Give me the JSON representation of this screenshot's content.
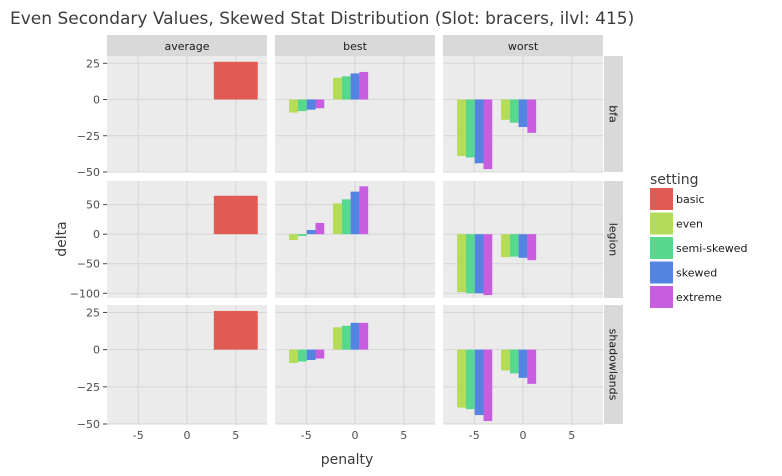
{
  "chart_data": {
    "type": "bar",
    "title": "Even Secondary Values, Skewed Stat Distribution (Slot: bracers, ilvl: 415)",
    "xlabel": "penalty",
    "ylabel": "delta",
    "x_ticks": [
      -5,
      0,
      5
    ],
    "x_tick_labels": [
      "-5",
      "0",
      "5"
    ],
    "xlim": [
      -8.2,
      8.2
    ],
    "facet_columns": [
      "average",
      "best",
      "worst"
    ],
    "facet_rows": [
      "bfa",
      "legion",
      "shadowlands"
    ],
    "rows": [
      {
        "name": "bfa",
        "ylim": [
          -50,
          30
        ],
        "y_ticks": [
          25,
          0,
          -25,
          -50
        ],
        "y_tick_labels": [
          "25",
          "0",
          "−25",
          "−50"
        ]
      },
      {
        "name": "legion",
        "ylim": [
          -108,
          90
        ],
        "y_ticks": [
          50,
          0,
          -50,
          -100
        ],
        "y_tick_labels": [
          "50",
          "0",
          "−50",
          "−100"
        ]
      },
      {
        "name": "shadowlands",
        "ylim": [
          -50,
          30
        ],
        "y_ticks": [
          25,
          0,
          -25,
          -50
        ],
        "y_tick_labels": [
          "25",
          "0",
          "−25",
          "−50"
        ]
      }
    ],
    "legend": {
      "title": "setting",
      "position": "right",
      "entries": [
        {
          "label": "basic",
          "color": "#e15b54"
        },
        {
          "label": "even",
          "color": "#b5dc58"
        },
        {
          "label": "semi-skewed",
          "color": "#56d98e"
        },
        {
          "label": "skewed",
          "color": "#5384e1"
        },
        {
          "label": "extreme",
          "color": "#c85de0"
        }
      ]
    },
    "bar_width": 0.9,
    "bars": [
      {
        "row": "bfa",
        "col": "average",
        "setting": "basic",
        "x": 5,
        "value": 26,
        "width": 4.5
      },
      {
        "row": "legion",
        "col": "average",
        "setting": "basic",
        "x": 5,
        "value": 65,
        "width": 4.5
      },
      {
        "row": "shadowlands",
        "col": "average",
        "setting": "basic",
        "x": 5,
        "value": 26,
        "width": 4.5
      },
      {
        "row": "bfa",
        "col": "best",
        "setting": "even",
        "x": -6.3,
        "value": -9
      },
      {
        "row": "bfa",
        "col": "best",
        "setting": "semi-skewed",
        "x": -5.4,
        "value": -8
      },
      {
        "row": "bfa",
        "col": "best",
        "setting": "skewed",
        "x": -4.5,
        "value": -7
      },
      {
        "row": "bfa",
        "col": "best",
        "setting": "extreme",
        "x": -3.6,
        "value": -6
      },
      {
        "row": "bfa",
        "col": "best",
        "setting": "even",
        "x": -1.8,
        "value": 15
      },
      {
        "row": "bfa",
        "col": "best",
        "setting": "semi-skewed",
        "x": -0.9,
        "value": 16
      },
      {
        "row": "bfa",
        "col": "best",
        "setting": "skewed",
        "x": 0,
        "value": 18
      },
      {
        "row": "bfa",
        "col": "best",
        "setting": "extreme",
        "x": 0.9,
        "value": 19
      },
      {
        "row": "legion",
        "col": "best",
        "setting": "even",
        "x": -6.3,
        "value": -10
      },
      {
        "row": "legion",
        "col": "best",
        "setting": "semi-skewed",
        "x": -5.4,
        "value": -3
      },
      {
        "row": "legion",
        "col": "best",
        "setting": "skewed",
        "x": -4.5,
        "value": 7
      },
      {
        "row": "legion",
        "col": "best",
        "setting": "extreme",
        "x": -3.6,
        "value": 19
      },
      {
        "row": "legion",
        "col": "best",
        "setting": "even",
        "x": -1.8,
        "value": 52
      },
      {
        "row": "legion",
        "col": "best",
        "setting": "semi-skewed",
        "x": -0.9,
        "value": 59
      },
      {
        "row": "legion",
        "col": "best",
        "setting": "skewed",
        "x": 0,
        "value": 72
      },
      {
        "row": "legion",
        "col": "best",
        "setting": "extreme",
        "x": 0.9,
        "value": 81
      },
      {
        "row": "shadowlands",
        "col": "best",
        "setting": "even",
        "x": -6.3,
        "value": -9
      },
      {
        "row": "shadowlands",
        "col": "best",
        "setting": "semi-skewed",
        "x": -5.4,
        "value": -8
      },
      {
        "row": "shadowlands",
        "col": "best",
        "setting": "skewed",
        "x": -4.5,
        "value": -7
      },
      {
        "row": "shadowlands",
        "col": "best",
        "setting": "extreme",
        "x": -3.6,
        "value": -6
      },
      {
        "row": "shadowlands",
        "col": "best",
        "setting": "even",
        "x": -1.8,
        "value": 15
      },
      {
        "row": "shadowlands",
        "col": "best",
        "setting": "semi-skewed",
        "x": -0.9,
        "value": 16
      },
      {
        "row": "shadowlands",
        "col": "best",
        "setting": "skewed",
        "x": 0,
        "value": 18
      },
      {
        "row": "shadowlands",
        "col": "best",
        "setting": "extreme",
        "x": 0.9,
        "value": 18
      },
      {
        "row": "bfa",
        "col": "worst",
        "setting": "even",
        "x": -6.3,
        "value": -39
      },
      {
        "row": "bfa",
        "col": "worst",
        "setting": "semi-skewed",
        "x": -5.4,
        "value": -40
      },
      {
        "row": "bfa",
        "col": "worst",
        "setting": "skewed",
        "x": -4.5,
        "value": -44
      },
      {
        "row": "bfa",
        "col": "worst",
        "setting": "extreme",
        "x": -3.6,
        "value": -48
      },
      {
        "row": "bfa",
        "col": "worst",
        "setting": "even",
        "x": -1.8,
        "value": -14
      },
      {
        "row": "bfa",
        "col": "worst",
        "setting": "semi-skewed",
        "x": -0.9,
        "value": -16
      },
      {
        "row": "bfa",
        "col": "worst",
        "setting": "skewed",
        "x": 0,
        "value": -19
      },
      {
        "row": "bfa",
        "col": "worst",
        "setting": "extreme",
        "x": 0.9,
        "value": -23
      },
      {
        "row": "legion",
        "col": "worst",
        "setting": "even",
        "x": -6.3,
        "value": -98
      },
      {
        "row": "legion",
        "col": "worst",
        "setting": "semi-skewed",
        "x": -5.4,
        "value": -100
      },
      {
        "row": "legion",
        "col": "worst",
        "setting": "skewed",
        "x": -4.5,
        "value": -100
      },
      {
        "row": "legion",
        "col": "worst",
        "setting": "extreme",
        "x": -3.6,
        "value": -103
      },
      {
        "row": "legion",
        "col": "worst",
        "setting": "even",
        "x": -1.8,
        "value": -39
      },
      {
        "row": "legion",
        "col": "worst",
        "setting": "semi-skewed",
        "x": -0.9,
        "value": -38
      },
      {
        "row": "legion",
        "col": "worst",
        "setting": "skewed",
        "x": 0,
        "value": -40
      },
      {
        "row": "legion",
        "col": "worst",
        "setting": "extreme",
        "x": 0.9,
        "value": -44
      },
      {
        "row": "shadowlands",
        "col": "worst",
        "setting": "even",
        "x": -6.3,
        "value": -39
      },
      {
        "row": "shadowlands",
        "col": "worst",
        "setting": "semi-skewed",
        "x": -5.4,
        "value": -40
      },
      {
        "row": "shadowlands",
        "col": "worst",
        "setting": "skewed",
        "x": -4.5,
        "value": -44
      },
      {
        "row": "shadowlands",
        "col": "worst",
        "setting": "extreme",
        "x": -3.6,
        "value": -48
      },
      {
        "row": "shadowlands",
        "col": "worst",
        "setting": "even",
        "x": -1.8,
        "value": -14
      },
      {
        "row": "shadowlands",
        "col": "worst",
        "setting": "semi-skewed",
        "x": -0.9,
        "value": -16
      },
      {
        "row": "shadowlands",
        "col": "worst",
        "setting": "skewed",
        "x": 0,
        "value": -19
      },
      {
        "row": "shadowlands",
        "col": "worst",
        "setting": "extreme",
        "x": 0.9,
        "value": -23
      }
    ],
    "grid": true
  }
}
